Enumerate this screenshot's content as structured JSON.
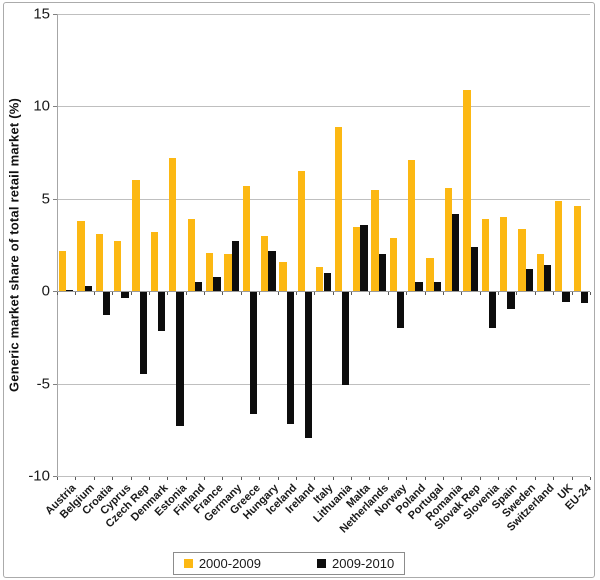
{
  "chart_data": {
    "type": "bar",
    "title": "",
    "xlabel": "",
    "ylabel": "Generic market share of total retail market (%)",
    "ylim": [
      -10,
      15
    ],
    "yticks": [
      15,
      10,
      5,
      0,
      -5,
      -10
    ],
    "grid": true,
    "legend_position": "bottom",
    "categories": [
      "Austria",
      "Belgium",
      "Croatia",
      "Cyprus",
      "Czech Rep",
      "Denmark",
      "Estonia",
      "Finland",
      "France",
      "Germany",
      "Greece",
      "Hungary",
      "Iceland",
      "Ireland",
      "Italy",
      "Lithuania",
      "Malta",
      "Netherlands",
      "Norway",
      "Poland",
      "Portugal",
      "Romania",
      "Slovak Rep",
      "Slovenia",
      "Spain",
      "Sweden",
      "Switzerland",
      "UK",
      "EU-24"
    ],
    "series": [
      {
        "name": "2000-2009",
        "color": "#fcb813",
        "values": [
          2.2,
          3.8,
          3.1,
          2.7,
          6.0,
          3.2,
          7.2,
          3.9,
          2.1,
          2.0,
          5.7,
          3.0,
          1.6,
          6.5,
          1.3,
          8.9,
          3.5,
          5.5,
          2.9,
          7.1,
          1.8,
          5.6,
          10.9,
          3.9,
          4.0,
          3.4,
          2.0,
          4.9,
          4.6
        ]
      },
      {
        "name": "2009-2010",
        "color": "#0d0d0d",
        "values": [
          0.1,
          0.3,
          -1.2,
          -0.3,
          -4.4,
          -2.1,
          -7.2,
          0.5,
          0.8,
          2.7,
          -6.6,
          2.2,
          -7.1,
          -7.9,
          1.0,
          -5.0,
          3.6,
          2.0,
          -1.9,
          0.5,
          0.5,
          4.2,
          2.4,
          -1.9,
          -0.9,
          1.2,
          1.4,
          -0.5,
          -0.6
        ]
      }
    ]
  },
  "colors": {
    "gridline": "#bfbfbf",
    "zero_line": "#999999",
    "axis_line": "#a6a6a6",
    "text": "#1a1a1a",
    "background": "#ffffff",
    "border": "#ababab"
  }
}
